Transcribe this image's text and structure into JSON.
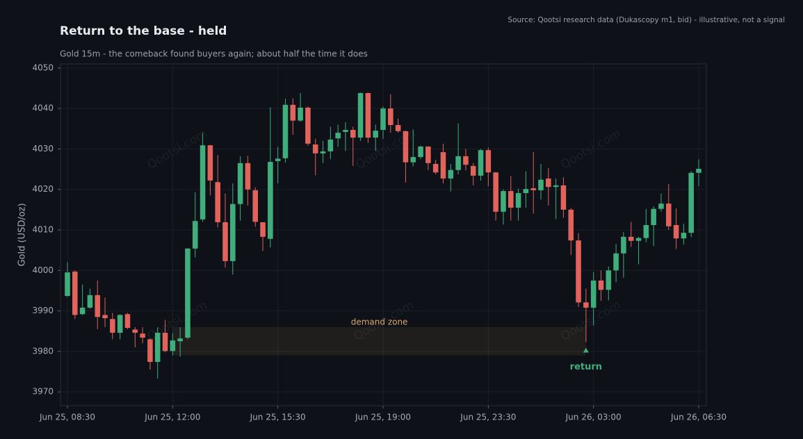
{
  "chart_data": {
    "type": "candlestick",
    "title": "Return to the base - held",
    "subtitle": "Gold 15m - the comeback found buyers again; about half the time it does",
    "source": "Source: Qootsi research data (Dukascopy m1, bid) - illustrative, not a signal",
    "watermark": "Qootsi.com",
    "y_label": "Gold (USD/oz)",
    "up_color": "#3fae7c",
    "down_color": "#e0645c",
    "grid": true,
    "ylim": [
      3966.6,
      4051
    ],
    "yticks": [
      3970,
      3980,
      3990,
      4000,
      4010,
      4020,
      4030,
      4040,
      4050
    ],
    "categories": [
      "Jun 25, 08:30",
      null,
      null,
      null,
      null,
      null,
      null,
      null,
      null,
      null,
      null,
      null,
      null,
      null,
      "Jun 25, 12:00",
      null,
      null,
      null,
      null,
      null,
      null,
      null,
      null,
      null,
      null,
      null,
      null,
      null,
      "Jun 25, 15:30",
      null,
      null,
      null,
      null,
      null,
      null,
      null,
      null,
      null,
      null,
      null,
      null,
      null,
      "Jun 25, 19:00",
      null,
      null,
      null,
      null,
      null,
      null,
      null,
      null,
      null,
      null,
      null,
      null,
      null,
      "Jun 25, 23:30",
      null,
      null,
      null,
      null,
      null,
      null,
      null,
      null,
      null,
      null,
      null,
      null,
      null,
      "Jun 26, 03:00",
      null,
      null,
      null,
      null,
      null,
      null,
      null,
      null,
      null,
      null,
      null,
      null,
      null,
      "Jun 26, 06:30"
    ],
    "open": [
      3993.7,
      3999.7,
      3989.2,
      3990.8,
      3993.9,
      3989,
      3988,
      3984.6,
      3989.2,
      3985.4,
      3984.4,
      3983,
      3977.4,
      3984.6,
      3980.1,
      3982.5,
      3983.4,
      4005.4,
      4012.6,
      4030.9,
      4021.8,
      4011.9,
      4002.3,
      4016.4,
      4026.5,
      4019.8,
      4011.9,
      4007.8,
      4027,
      4027.7,
      4040.9,
      4037,
      4040.2,
      4031.1,
      4028.9,
      4029.4,
      4032.6,
      4034.2,
      4034.7,
      4032.8,
      4043.8,
      4032.8,
      4034.7,
      4040,
      4035.9,
      4034.4,
      4026.7,
      4028,
      4030.6,
      4026.3,
      4029.2,
      4022.7,
      4024.8,
      4028.2,
      4025.8,
      4023.4,
      4029.7,
      4024.2,
      4014.5,
      4019.6,
      4015.5,
      4019.1,
      4020.3,
      4019.8,
      4022.7,
      4020.6,
      4021,
      4015,
      4007.4,
      3992.1,
      3990.8,
      3997.5,
      3995.2,
      4000,
      4004.2,
      4008.3,
      4007.3,
      4008,
      4011.2,
      4015.2,
      4016.5,
      4011.2,
      4007.9,
      4009.3,
      4024.1
    ],
    "high": [
      4002,
      4000,
      3996.5,
      3995.5,
      3997.5,
      3993.3,
      3989.5,
      3989.2,
      3989.5,
      3986,
      3986,
      3983.2,
      3986,
      3987.8,
      3984.5,
      3986,
      4005.5,
      4019.3,
      4034,
      4031,
      4028.5,
      4019,
      4021.5,
      4028.2,
      4028.3,
      4020.5,
      4011.9,
      4040.3,
      4030.5,
      4042.4,
      4042.5,
      4043.8,
      4040.5,
      4032.5,
      4032,
      4035.5,
      4036,
      4036.6,
      4035.5,
      4043.9,
      4043.9,
      4036,
      4040.5,
      4043.5,
      4037.5,
      4034.5,
      4034.8,
      4030.8,
      4030.6,
      4027.3,
      4031.3,
      4026.3,
      4036.3,
      4030,
      4026.5,
      4030,
      4030.3,
      4024.3,
      4020,
      4023.3,
      4020.2,
      4024.5,
      4029.3,
      4026.3,
      4025.3,
      4022.7,
      4023,
      4015.4,
      4009.2,
      3995.5,
      3999.6,
      4000,
      4001,
      4006.5,
      4009.5,
      4012,
      4008.3,
      4015.2,
      4015.8,
      4019,
      4021.3,
      4015.3,
      4011.5,
      4024.5,
      4027.4
    ],
    "low": [
      3993.5,
      3988,
      3989,
      3990.5,
      3985.5,
      3986,
      3983,
      3983,
      3985.5,
      3981,
      3982,
      3975.5,
      3973.3,
      3979.8,
      3979,
      3978.7,
      3983,
      4003.2,
      4012,
      4018.5,
      4010.6,
      4000.7,
      3999,
      4012.3,
      4016,
      4010.8,
      4004.8,
      4005.7,
      4021.5,
      4026.6,
      4033.5,
      4036.7,
      4030.8,
      4023.5,
      4026.5,
      4027.5,
      4030.5,
      4029.5,
      4025.8,
      4032,
      4031.5,
      4029.5,
      4032.5,
      4034,
      4034,
      4021.7,
      4025.7,
      4027.5,
      4024.8,
      4023.7,
      4021.5,
      4019.5,
      4023.7,
      4024.7,
      4021,
      4022.2,
      4020.8,
      4012.3,
      4011.3,
      4012.3,
      4012.3,
      4015.5,
      4014,
      4017.5,
      4016,
      4012.7,
      4013,
      4003.8,
      3991,
      3982.3,
      3986.4,
      3992.5,
      3992.6,
      3997.1,
      3998.2,
      4005.8,
      4001.5,
      4007,
      4006,
      4014.5,
      4010,
      4005.3,
      4006.4,
      4008.2,
      4020.8
    ],
    "close": [
      3999.5,
      3989,
      3990.8,
      3993.9,
      3988.5,
      3988.2,
      3984.6,
      3989,
      3985.8,
      3984.6,
      3983.4,
      3977.4,
      3984.6,
      3980.1,
      3982.7,
      3983.2,
      4005.4,
      4012.2,
      4030.9,
      4022.2,
      4011.9,
      4002.3,
      4016.4,
      4026.5,
      4020,
      4012,
      4008.3,
      4026.8,
      4027.6,
      4040.9,
      4037,
      4040.2,
      4031.3,
      4028.9,
      4029.4,
      4032.3,
      4034,
      4034.7,
      4032.8,
      4043.8,
      4032.8,
      4034.5,
      4040,
      4035.9,
      4034.4,
      4026.7,
      4028,
      4030.6,
      4026.5,
      4024.2,
      4022.7,
      4024.8,
      4028.2,
      4026.1,
      4023.4,
      4029.7,
      4024.2,
      4014.5,
      4019.6,
      4015.5,
      4019.1,
      4020.1,
      4019.8,
      4022.4,
      4020.6,
      4021,
      4015,
      4007.4,
      3992.1,
      3990.8,
      3997.5,
      3995.2,
      4000,
      4004.2,
      4008.3,
      4007.3,
      4008,
      4011.2,
      4015.2,
      4016.5,
      4010.9,
      4007.9,
      4009.3,
      4024.1,
      4025.1
    ],
    "zone": {
      "label": "demand zone",
      "low": 3979,
      "high": 3986,
      "x": [
        14,
        69
      ]
    },
    "annotation": {
      "text": "return",
      "x": 69
    }
  }
}
